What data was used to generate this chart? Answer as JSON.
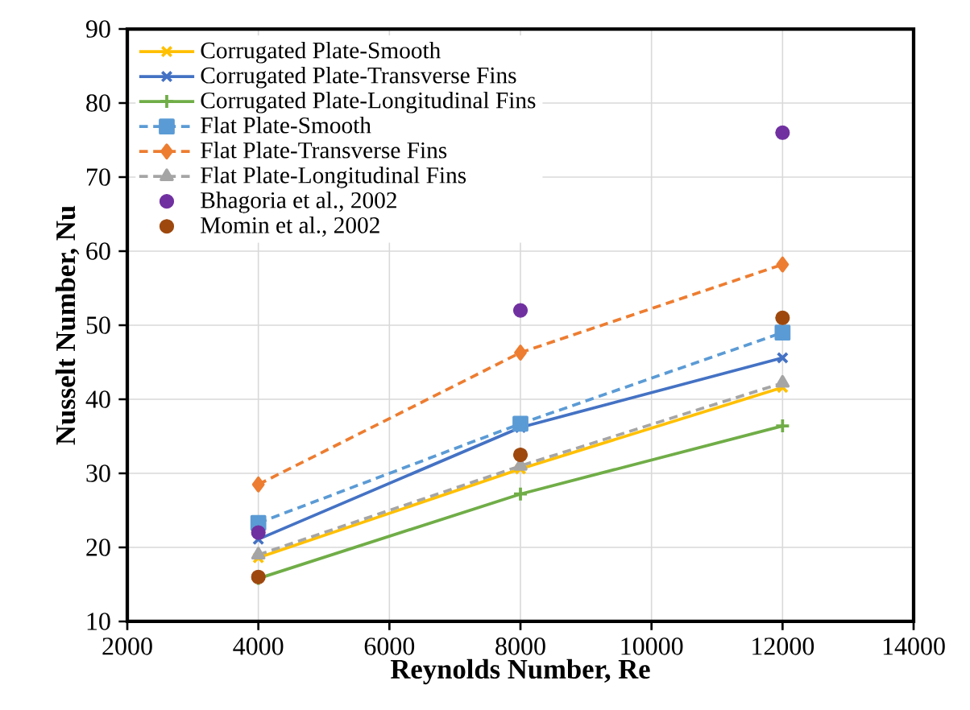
{
  "chart_data": {
    "type": "line",
    "xlabel": "Reynolds Number, Re",
    "ylabel": "Nusselt Number, Nu",
    "x": [
      4000,
      8000,
      12000
    ],
    "series": [
      {
        "name": "Corrugated Plate-Smooth",
        "color": "#ffc000",
        "marker": "cross",
        "line_style": "solid",
        "values": [
          18.6,
          30.6,
          41.6
        ]
      },
      {
        "name": "Corrugated Plate-Transverse Fins",
        "color": "#4472c4",
        "marker": "cross",
        "line_style": "solid",
        "values": [
          21.1,
          36.2,
          45.6
        ]
      },
      {
        "name": "Corrugated Plate-Longitudinal Fins",
        "color": "#70ad47",
        "marker": "plus",
        "line_style": "solid",
        "values": [
          15.8,
          27.2,
          36.4
        ]
      },
      {
        "name": "Flat Plate-Smooth",
        "color": "#5b9bd5",
        "marker": "square",
        "line_style": "dashed",
        "values": [
          23.3,
          36.7,
          49.0
        ]
      },
      {
        "name": "Flat Plate-Transverse Fins",
        "color": "#ed7d31",
        "marker": "diamond",
        "line_style": "dashed",
        "values": [
          28.5,
          46.3,
          58.2
        ]
      },
      {
        "name": "Flat Plate-Longitudinal Fins",
        "color": "#a5a5a5",
        "marker": "triangle",
        "line_style": "dashed",
        "values": [
          19.0,
          31.0,
          42.2
        ]
      },
      {
        "name": "Bhagoria et al., 2002",
        "type": "scatter",
        "color": "#7030a0",
        "marker": "circle",
        "values": [
          22.0,
          52.0,
          76.0
        ]
      },
      {
        "name": "Momin et al., 2002",
        "type": "scatter",
        "color": "#9e480e",
        "marker": "circle",
        "values": [
          16.0,
          32.5,
          51.0
        ]
      }
    ],
    "xlim": [
      2000,
      14000
    ],
    "xticks": [
      2000,
      4000,
      6000,
      8000,
      10000,
      12000,
      14000
    ],
    "ylim": [
      10,
      90
    ],
    "yticks": [
      10,
      20,
      30,
      40,
      50,
      60,
      70,
      80,
      90
    ],
    "grid": true,
    "legend": "top left"
  }
}
